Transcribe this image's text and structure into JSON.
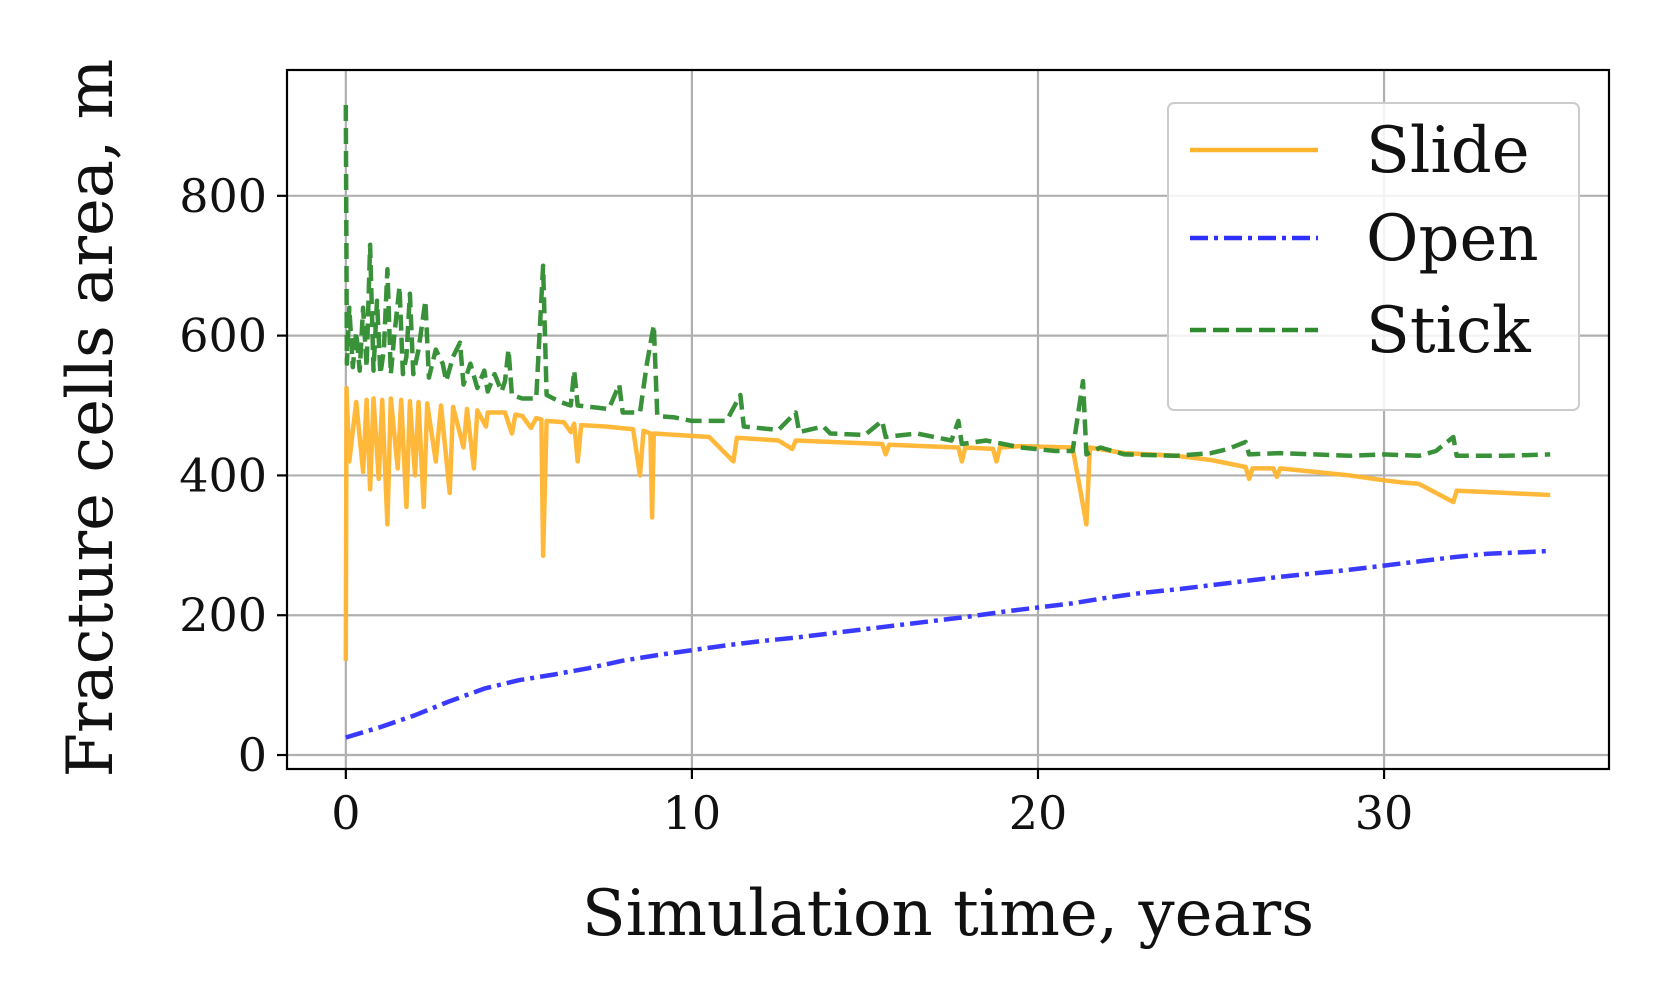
{
  "chart_data": {
    "type": "line",
    "xlabel": "Simulation time, years",
    "ylabel": "Fracture cells area, m",
    "xlim": [
      -1.7,
      36.5
    ],
    "ylim": [
      -20,
      980
    ],
    "xticks": [
      0,
      10,
      20,
      30
    ],
    "yticks": [
      0,
      200,
      400,
      600,
      800
    ],
    "grid": true,
    "legend_position": "top-right",
    "series": [
      {
        "name": "Slide",
        "color": "#ffb42e",
        "style": "solid",
        "points": [
          [
            0,
            135
          ],
          [
            0.02,
            525
          ],
          [
            0.1,
            420
          ],
          [
            0.3,
            505
          ],
          [
            0.5,
            405
          ],
          [
            0.6,
            508
          ],
          [
            0.7,
            380
          ],
          [
            0.8,
            510
          ],
          [
            0.95,
            395
          ],
          [
            1.05,
            508
          ],
          [
            1.2,
            330
          ],
          [
            1.3,
            510
          ],
          [
            1.5,
            410
          ],
          [
            1.6,
            508
          ],
          [
            1.75,
            355
          ],
          [
            1.85,
            506
          ],
          [
            2.0,
            400
          ],
          [
            2.1,
            505
          ],
          [
            2.25,
            355
          ],
          [
            2.35,
            503
          ],
          [
            2.6,
            420
          ],
          [
            2.75,
            500
          ],
          [
            3.0,
            375
          ],
          [
            3.1,
            498
          ],
          [
            3.4,
            440
          ],
          [
            3.5,
            495
          ],
          [
            3.7,
            410
          ],
          [
            3.8,
            493
          ],
          [
            4.05,
            470
          ],
          [
            4.1,
            490
          ],
          [
            4.6,
            490
          ],
          [
            4.8,
            460
          ],
          [
            4.9,
            487
          ],
          [
            5.1,
            485
          ],
          [
            5.35,
            468
          ],
          [
            5.5,
            482
          ],
          [
            5.65,
            480
          ],
          [
            5.7,
            285
          ],
          [
            5.8,
            478
          ],
          [
            6.3,
            476
          ],
          [
            6.5,
            462
          ],
          [
            6.6,
            474
          ],
          [
            6.7,
            420
          ],
          [
            6.8,
            472
          ],
          [
            7.5,
            470
          ],
          [
            8.3,
            466
          ],
          [
            8.5,
            400
          ],
          [
            8.6,
            464
          ],
          [
            8.8,
            460
          ],
          [
            8.85,
            340
          ],
          [
            8.9,
            460
          ],
          [
            10.5,
            455
          ],
          [
            11.2,
            420
          ],
          [
            11.3,
            454
          ],
          [
            12.5,
            450
          ],
          [
            12.9,
            438
          ],
          [
            13.0,
            450
          ],
          [
            14.5,
            447
          ],
          [
            15.5,
            445
          ],
          [
            15.6,
            430
          ],
          [
            15.7,
            444
          ],
          [
            17.7,
            440
          ],
          [
            17.8,
            420
          ],
          [
            17.9,
            440
          ],
          [
            18.7,
            438
          ],
          [
            18.8,
            420
          ],
          [
            18.9,
            440
          ],
          [
            19.5,
            442
          ],
          [
            21.0,
            440
          ],
          [
            21.4,
            330
          ],
          [
            21.5,
            440
          ],
          [
            22.5,
            432
          ],
          [
            24.0,
            428
          ],
          [
            25.0,
            422
          ],
          [
            26.0,
            412
          ],
          [
            26.1,
            395
          ],
          [
            26.2,
            410
          ],
          [
            26.8,
            410
          ],
          [
            26.9,
            398
          ],
          [
            27.0,
            410
          ],
          [
            28.0,
            405
          ],
          [
            29.0,
            400
          ],
          [
            30.0,
            393
          ],
          [
            30.5,
            390
          ],
          [
            31.0,
            388
          ],
          [
            32.0,
            362
          ],
          [
            32.1,
            378
          ],
          [
            33.5,
            375
          ],
          [
            34.8,
            372
          ]
        ]
      },
      {
        "name": "Open",
        "color": "#2f2fff",
        "style": "dashdot",
        "points": [
          [
            0,
            25
          ],
          [
            1,
            40
          ],
          [
            2,
            57
          ],
          [
            3,
            77
          ],
          [
            4,
            95
          ],
          [
            5,
            107
          ],
          [
            6,
            115
          ],
          [
            7,
            124
          ],
          [
            8,
            135
          ],
          [
            9,
            143
          ],
          [
            10,
            150
          ],
          [
            11,
            157
          ],
          [
            12,
            163
          ],
          [
            13,
            168
          ],
          [
            14,
            174
          ],
          [
            15,
            180
          ],
          [
            16,
            186
          ],
          [
            17,
            192
          ],
          [
            18,
            198
          ],
          [
            19,
            205
          ],
          [
            20,
            211
          ],
          [
            21,
            217
          ],
          [
            22,
            225
          ],
          [
            23,
            232
          ],
          [
            24,
            237
          ],
          [
            25,
            243
          ],
          [
            26,
            249
          ],
          [
            27,
            255
          ],
          [
            28,
            260
          ],
          [
            29,
            265
          ],
          [
            30,
            271
          ],
          [
            31,
            277
          ],
          [
            32,
            283
          ],
          [
            33,
            288
          ],
          [
            34,
            290
          ],
          [
            34.8,
            292
          ]
        ]
      },
      {
        "name": "Stick",
        "color": "#2e8b2e",
        "style": "dashed",
        "points": [
          [
            0,
            930
          ],
          [
            0.03,
            560
          ],
          [
            0.1,
            640
          ],
          [
            0.2,
            555
          ],
          [
            0.3,
            605
          ],
          [
            0.4,
            550
          ],
          [
            0.5,
            640
          ],
          [
            0.6,
            555
          ],
          [
            0.7,
            730
          ],
          [
            0.8,
            550
          ],
          [
            0.9,
            650
          ],
          [
            1.0,
            545
          ],
          [
            1.1,
            580
          ],
          [
            1.2,
            695
          ],
          [
            1.3,
            545
          ],
          [
            1.4,
            600
          ],
          [
            1.55,
            670
          ],
          [
            1.65,
            545
          ],
          [
            1.75,
            570
          ],
          [
            1.85,
            660
          ],
          [
            1.95,
            545
          ],
          [
            2.1,
            580
          ],
          [
            2.3,
            650
          ],
          [
            2.4,
            540
          ],
          [
            2.6,
            580
          ],
          [
            2.8,
            560
          ],
          [
            2.9,
            535
          ],
          [
            3.1,
            570
          ],
          [
            3.3,
            590
          ],
          [
            3.4,
            530
          ],
          [
            3.6,
            560
          ],
          [
            3.8,
            525
          ],
          [
            4.0,
            550
          ],
          [
            4.1,
            520
          ],
          [
            4.3,
            545
          ],
          [
            4.5,
            520
          ],
          [
            4.6,
            535
          ],
          [
            4.7,
            580
          ],
          [
            4.8,
            515
          ],
          [
            5.1,
            510
          ],
          [
            5.5,
            510
          ],
          [
            5.7,
            700
          ],
          [
            5.8,
            515
          ],
          [
            6.2,
            505
          ],
          [
            6.5,
            500
          ],
          [
            6.6,
            550
          ],
          [
            6.7,
            500
          ],
          [
            7.6,
            495
          ],
          [
            7.9,
            530
          ],
          [
            8.0,
            490
          ],
          [
            8.5,
            490
          ],
          [
            8.7,
            560
          ],
          [
            8.9,
            615
          ],
          [
            9.0,
            485
          ],
          [
            9.5,
            483
          ],
          [
            10.0,
            478
          ],
          [
            11.0,
            478
          ],
          [
            11.4,
            515
          ],
          [
            11.5,
            470
          ],
          [
            12.5,
            465
          ],
          [
            13.0,
            490
          ],
          [
            13.1,
            462
          ],
          [
            13.8,
            470
          ],
          [
            14.0,
            460
          ],
          [
            15.0,
            458
          ],
          [
            15.5,
            478
          ],
          [
            15.6,
            455
          ],
          [
            16.5,
            460
          ],
          [
            17.5,
            450
          ],
          [
            17.7,
            478
          ],
          [
            17.8,
            445
          ],
          [
            18.5,
            450
          ],
          [
            19.0,
            445
          ],
          [
            19.5,
            440
          ],
          [
            20.5,
            435
          ],
          [
            21.0,
            435
          ],
          [
            21.3,
            535
          ],
          [
            21.4,
            430
          ],
          [
            21.8,
            440
          ],
          [
            22.5,
            430
          ],
          [
            24.0,
            428
          ],
          [
            25.0,
            432
          ],
          [
            25.5,
            438
          ],
          [
            26.0,
            448
          ],
          [
            26.1,
            430
          ],
          [
            27.0,
            432
          ],
          [
            28.0,
            430
          ],
          [
            29.0,
            428
          ],
          [
            30.0,
            430
          ],
          [
            31.0,
            428
          ],
          [
            31.5,
            435
          ],
          [
            32.0,
            455
          ],
          [
            32.1,
            428
          ],
          [
            33.5,
            428
          ],
          [
            34.8,
            430
          ]
        ]
      }
    ]
  }
}
